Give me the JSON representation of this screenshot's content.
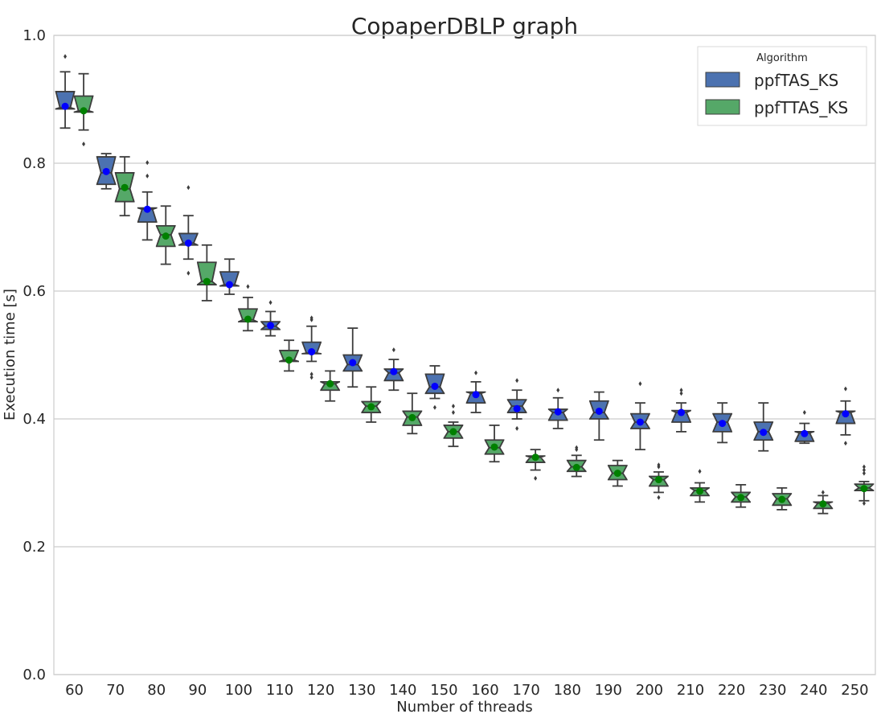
{
  "chart_data": {
    "type": "boxplot",
    "title": "CopaperDBLP graph",
    "xlabel": "Number of threads",
    "ylabel": "Execution time [s]",
    "ylim": [
      0.0,
      1.0
    ],
    "yticks": [
      "0.0",
      "0.2",
      "0.4",
      "0.6",
      "0.8",
      "1.0"
    ],
    "categories": [
      "60",
      "70",
      "80",
      "90",
      "100",
      "110",
      "120",
      "130",
      "140",
      "150",
      "160",
      "170",
      "180",
      "190",
      "200",
      "210",
      "220",
      "230",
      "240",
      "250"
    ],
    "grid": "horizontal",
    "notched": true,
    "legend": {
      "title": "Algorithm",
      "placement": "top-right"
    },
    "series": [
      {
        "name": "ppfTAS_KS",
        "color": "#4c72b0",
        "mean_color": "#0000ff",
        "boxes": [
          {
            "whislo": 0.855,
            "q1": 0.885,
            "med": 0.887,
            "q3": 0.912,
            "whishi": 0.943,
            "mean": 0.889,
            "fliers": [
              0.967
            ]
          },
          {
            "whislo": 0.76,
            "q1": 0.767,
            "med": 0.785,
            "q3": 0.81,
            "whishi": 0.815,
            "mean": 0.787,
            "fliers": []
          },
          {
            "whislo": 0.68,
            "q1": 0.708,
            "med": 0.728,
            "q3": 0.73,
            "whishi": 0.755,
            "mean": 0.728,
            "fliers": [
              0.78,
              0.801
            ]
          },
          {
            "whislo": 0.65,
            "q1": 0.672,
            "med": 0.675,
            "q3": 0.69,
            "whishi": 0.718,
            "mean": 0.675,
            "fliers": [
              0.628,
              0.762
            ]
          },
          {
            "whislo": 0.595,
            "q1": 0.608,
            "med": 0.61,
            "q3": 0.63,
            "whishi": 0.65,
            "mean": 0.61,
            "fliers": []
          },
          {
            "whislo": 0.53,
            "q1": 0.54,
            "med": 0.545,
            "q3": 0.552,
            "whishi": 0.568,
            "mean": 0.546,
            "fliers": [
              0.582
            ]
          },
          {
            "whislo": 0.49,
            "q1": 0.502,
            "med": 0.503,
            "q3": 0.52,
            "whishi": 0.545,
            "mean": 0.505,
            "fliers": [
              0.465,
              0.47,
              0.555,
              0.558
            ]
          },
          {
            "whislo": 0.45,
            "q1": 0.475,
            "med": 0.485,
            "q3": 0.5,
            "whishi": 0.542,
            "mean": 0.488,
            "fliers": []
          },
          {
            "whislo": 0.445,
            "q1": 0.46,
            "med": 0.472,
            "q3": 0.478,
            "whishi": 0.493,
            "mean": 0.474,
            "fliers": [
              0.508
            ]
          },
          {
            "whislo": 0.432,
            "q1": 0.44,
            "med": 0.45,
            "q3": 0.47,
            "whishi": 0.483,
            "mean": 0.451,
            "fliers": [
              0.418
            ]
          },
          {
            "whislo": 0.41,
            "q1": 0.425,
            "med": 0.44,
            "q3": 0.442,
            "whishi": 0.458,
            "mean": 0.438,
            "fliers": [
              0.472
            ]
          },
          {
            "whislo": 0.4,
            "q1": 0.41,
            "med": 0.42,
            "q3": 0.43,
            "whishi": 0.445,
            "mean": 0.416,
            "fliers": [
              0.385,
              0.46
            ]
          },
          {
            "whislo": 0.385,
            "q1": 0.398,
            "med": 0.41,
            "q3": 0.415,
            "whishi": 0.433,
            "mean": 0.411,
            "fliers": [
              0.445
            ]
          },
          {
            "whislo": 0.367,
            "q1": 0.4,
            "med": 0.41,
            "q3": 0.428,
            "whishi": 0.442,
            "mean": 0.412,
            "fliers": []
          },
          {
            "whislo": 0.352,
            "q1": 0.385,
            "med": 0.395,
            "q3": 0.408,
            "whishi": 0.425,
            "mean": 0.395,
            "fliers": [
              0.455
            ]
          },
          {
            "whislo": 0.38,
            "q1": 0.395,
            "med": 0.41,
            "q3": 0.413,
            "whishi": 0.425,
            "mean": 0.41,
            "fliers": [
              0.44,
              0.445
            ]
          },
          {
            "whislo": 0.363,
            "q1": 0.38,
            "med": 0.395,
            "q3": 0.408,
            "whishi": 0.425,
            "mean": 0.393,
            "fliers": []
          },
          {
            "whislo": 0.35,
            "q1": 0.367,
            "med": 0.38,
            "q3": 0.395,
            "whishi": 0.425,
            "mean": 0.379,
            "fliers": []
          },
          {
            "whislo": 0.362,
            "q1": 0.365,
            "med": 0.378,
            "q3": 0.38,
            "whishi": 0.393,
            "mean": 0.377,
            "fliers": [
              0.41
            ]
          },
          {
            "whislo": 0.375,
            "q1": 0.393,
            "med": 0.41,
            "q3": 0.412,
            "whishi": 0.428,
            "mean": 0.408,
            "fliers": [
              0.362,
              0.447
            ]
          }
        ]
      },
      {
        "name": "ppfTTAS_KS",
        "color": "#55a868",
        "mean_color": "#008000",
        "boxes": [
          {
            "whislo": 0.852,
            "q1": 0.88,
            "med": 0.882,
            "q3": 0.905,
            "whishi": 0.94,
            "mean": 0.882,
            "fliers": [
              0.83
            ]
          },
          {
            "whislo": 0.718,
            "q1": 0.74,
            "med": 0.76,
            "q3": 0.785,
            "whishi": 0.81,
            "mean": 0.762,
            "fliers": []
          },
          {
            "whislo": 0.642,
            "q1": 0.67,
            "med": 0.688,
            "q3": 0.702,
            "whishi": 0.733,
            "mean": 0.686,
            "fliers": []
          },
          {
            "whislo": 0.585,
            "q1": 0.61,
            "med": 0.615,
            "q3": 0.645,
            "whishi": 0.672,
            "mean": 0.615,
            "fliers": []
          },
          {
            "whislo": 0.538,
            "q1": 0.552,
            "med": 0.555,
            "q3": 0.572,
            "whishi": 0.59,
            "mean": 0.556,
            "fliers": [
              0.607
            ]
          },
          {
            "whislo": 0.475,
            "q1": 0.49,
            "med": 0.492,
            "q3": 0.507,
            "whishi": 0.523,
            "mean": 0.492,
            "fliers": []
          },
          {
            "whislo": 0.428,
            "q1": 0.445,
            "med": 0.455,
            "q3": 0.458,
            "whishi": 0.475,
            "mean": 0.455,
            "fliers": []
          },
          {
            "whislo": 0.395,
            "q1": 0.41,
            "med": 0.42,
            "q3": 0.427,
            "whishi": 0.45,
            "mean": 0.419,
            "fliers": []
          },
          {
            "whislo": 0.377,
            "q1": 0.39,
            "med": 0.403,
            "q3": 0.412,
            "whishi": 0.44,
            "mean": 0.402,
            "fliers": []
          },
          {
            "whislo": 0.357,
            "q1": 0.37,
            "med": 0.38,
            "q3": 0.39,
            "whishi": 0.395,
            "mean": 0.38,
            "fliers": [
              0.41,
              0.42
            ]
          },
          {
            "whislo": 0.333,
            "q1": 0.345,
            "med": 0.355,
            "q3": 0.367,
            "whishi": 0.39,
            "mean": 0.356,
            "fliers": []
          },
          {
            "whislo": 0.32,
            "q1": 0.332,
            "med": 0.34,
            "q3": 0.342,
            "whishi": 0.352,
            "mean": 0.34,
            "fliers": [
              0.307
            ]
          },
          {
            "whislo": 0.31,
            "q1": 0.318,
            "med": 0.325,
            "q3": 0.335,
            "whishi": 0.343,
            "mean": 0.324,
            "fliers": [
              0.352,
              0.355
            ]
          },
          {
            "whislo": 0.295,
            "q1": 0.305,
            "med": 0.315,
            "q3": 0.327,
            "whishi": 0.335,
            "mean": 0.315,
            "fliers": []
          },
          {
            "whislo": 0.285,
            "q1": 0.295,
            "med": 0.305,
            "q3": 0.31,
            "whishi": 0.317,
            "mean": 0.305,
            "fliers": [
              0.277,
              0.325,
              0.328
            ]
          },
          {
            "whislo": 0.27,
            "q1": 0.28,
            "med": 0.288,
            "q3": 0.292,
            "whishi": 0.3,
            "mean": 0.287,
            "fliers": [
              0.318
            ]
          },
          {
            "whislo": 0.262,
            "q1": 0.27,
            "med": 0.278,
            "q3": 0.285,
            "whishi": 0.297,
            "mean": 0.277,
            "fliers": []
          },
          {
            "whislo": 0.258,
            "q1": 0.265,
            "med": 0.275,
            "q3": 0.283,
            "whishi": 0.292,
            "mean": 0.274,
            "fliers": []
          },
          {
            "whislo": 0.252,
            "q1": 0.26,
            "med": 0.268,
            "q3": 0.27,
            "whishi": 0.28,
            "mean": 0.267,
            "fliers": [
              0.285
            ]
          },
          {
            "whislo": 0.272,
            "q1": 0.288,
            "med": 0.292,
            "q3": 0.298,
            "whishi": 0.302,
            "mean": 0.291,
            "fliers": [
              0.268,
              0.315,
              0.32,
              0.325
            ]
          }
        ]
      }
    ]
  }
}
